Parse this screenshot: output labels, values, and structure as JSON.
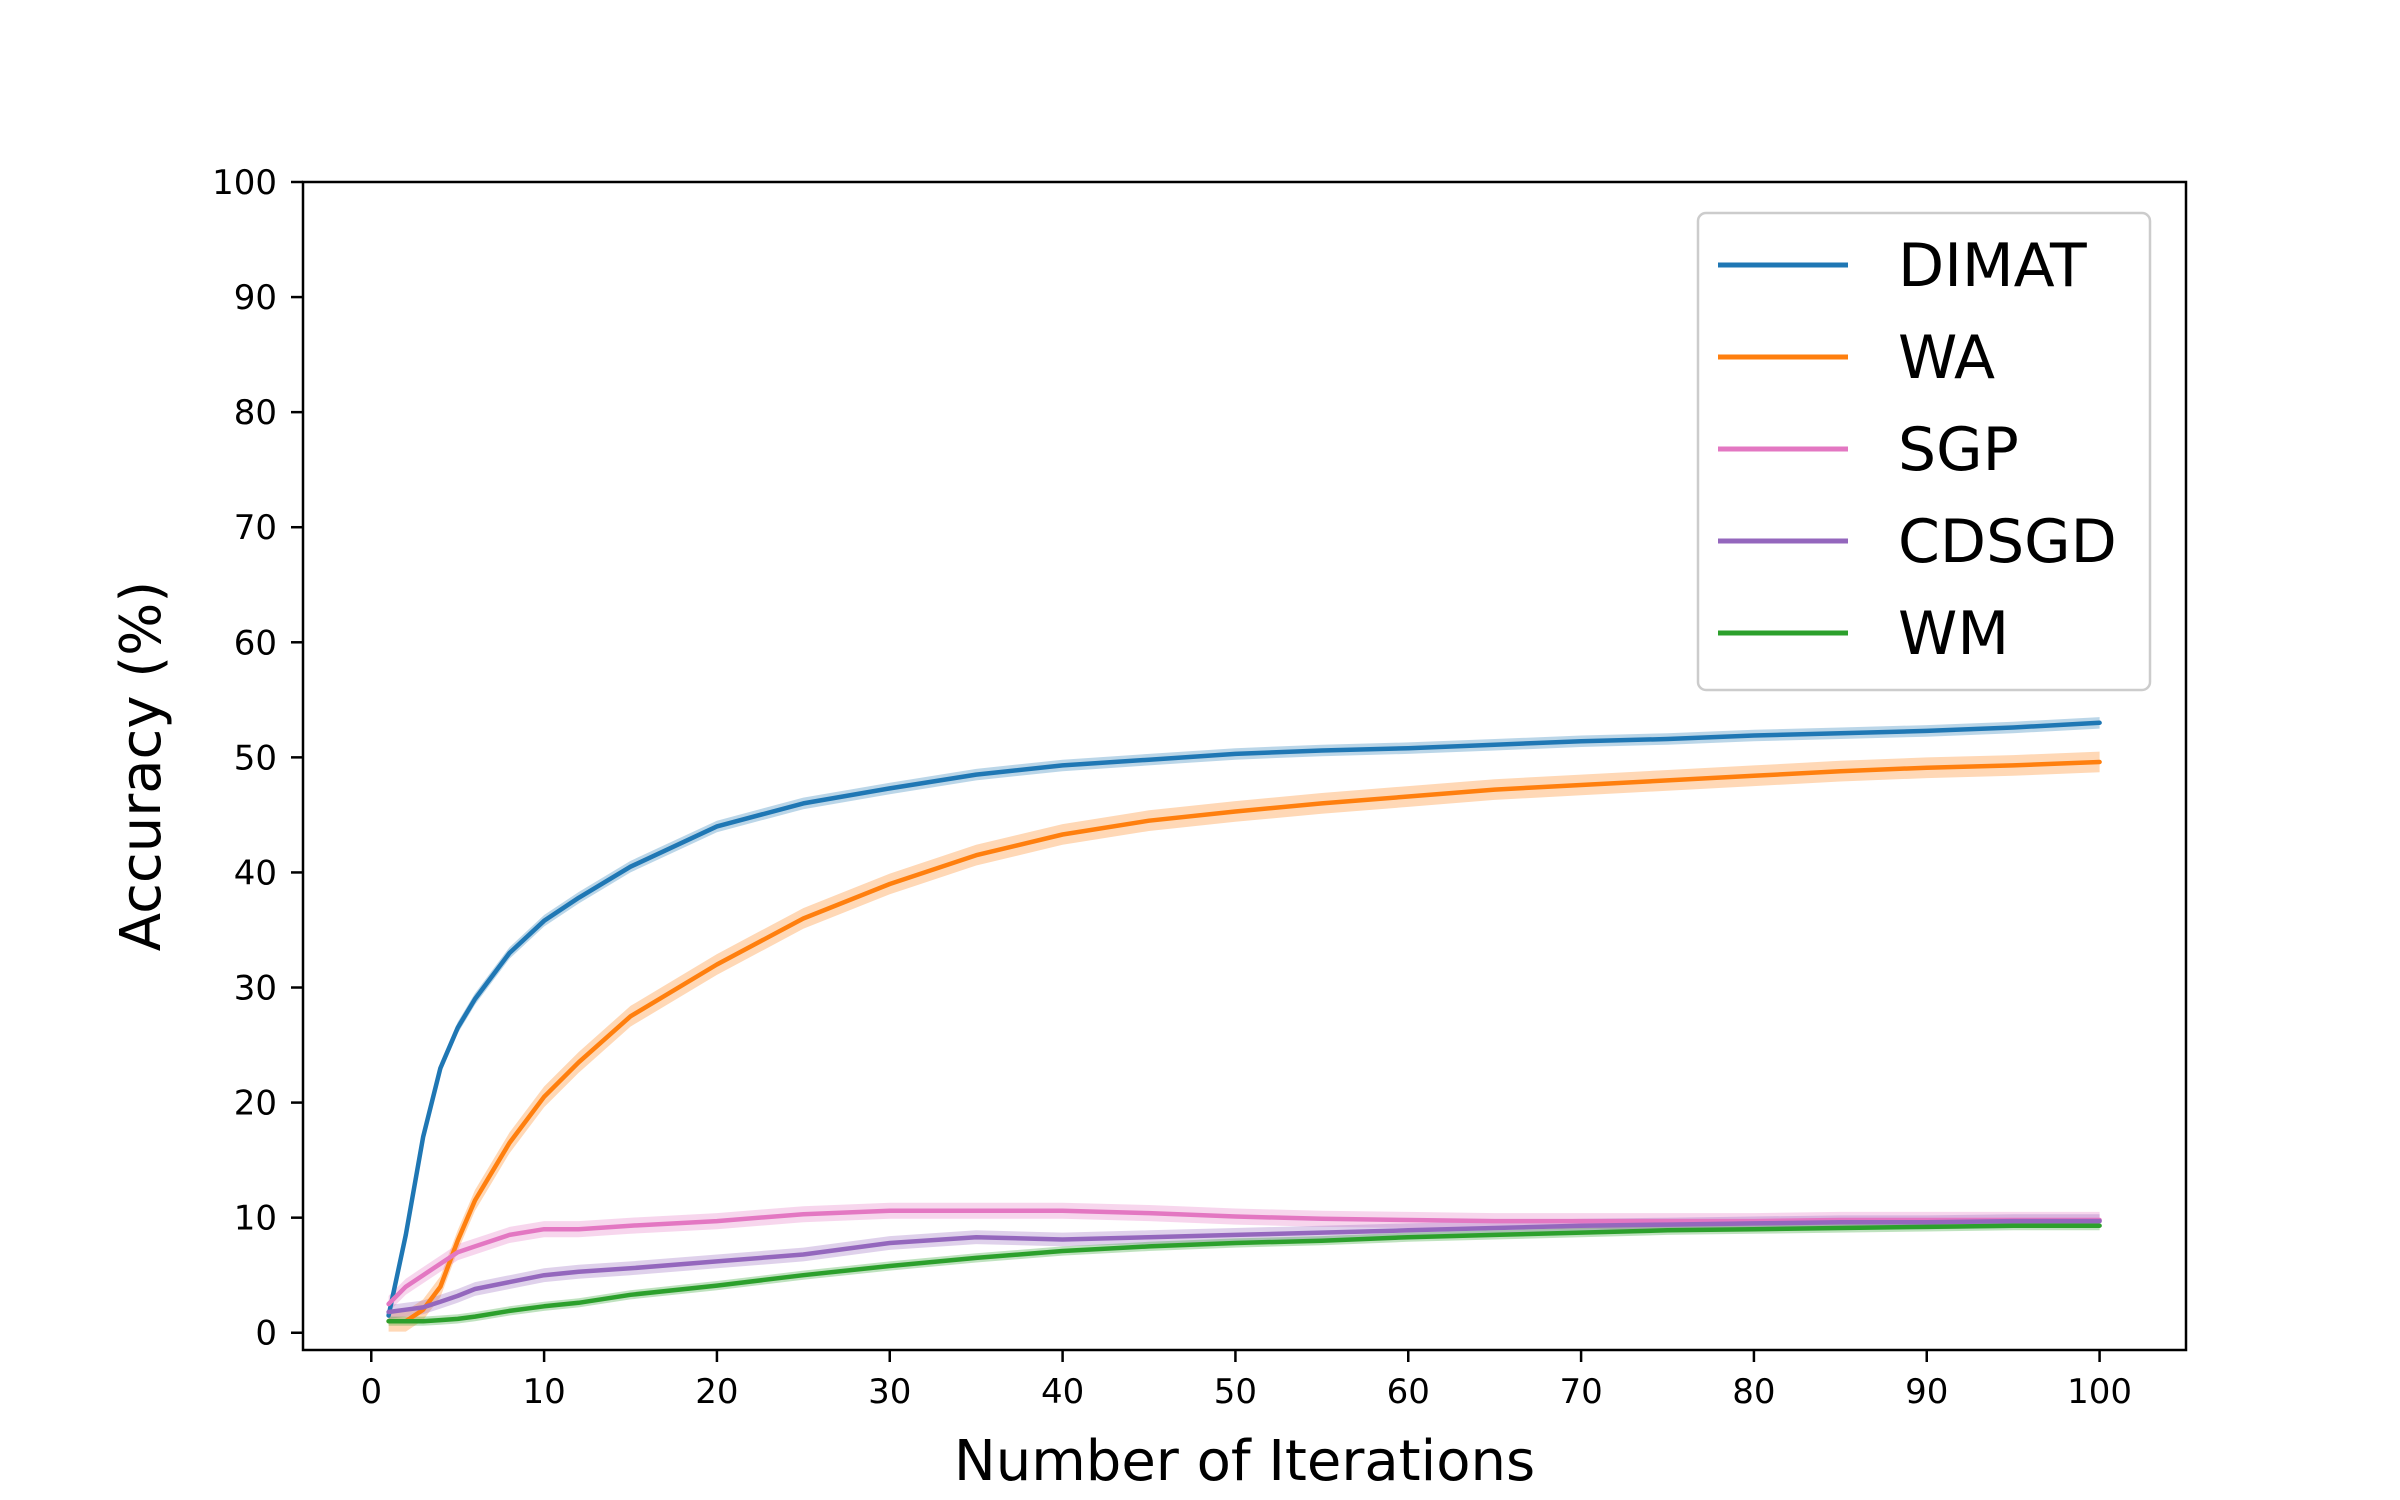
{
  "chart_data": {
    "type": "line",
    "title": "",
    "xlabel": "Number of Iterations",
    "ylabel": "Accuracy (%)",
    "xlim": [
      -3.95,
      105
    ],
    "ylim": [
      -1.5,
      100
    ],
    "xticks": [
      0,
      10,
      20,
      30,
      40,
      50,
      60,
      70,
      80,
      90,
      100
    ],
    "yticks": [
      0,
      10,
      20,
      30,
      40,
      50,
      60,
      70,
      80,
      90,
      100
    ],
    "grid": false,
    "legend_position": "top-right",
    "x": [
      1,
      2,
      3,
      4,
      5,
      6,
      8,
      10,
      12,
      15,
      20,
      25,
      30,
      35,
      40,
      45,
      50,
      55,
      60,
      65,
      70,
      75,
      80,
      85,
      90,
      95,
      100
    ],
    "series": [
      {
        "name": "DIMAT",
        "color": "#1f77b4",
        "values": [
          1.5,
          8.5,
          17,
          23,
          26.5,
          29,
          33,
          35.8,
          37.8,
          40.5,
          44,
          46,
          47.3,
          48.5,
          49.3,
          49.8,
          50.3,
          50.6,
          50.8,
          51.1,
          51.4,
          51.6,
          51.9,
          52.1,
          52.3,
          52.6,
          53
        ],
        "band": 0.5
      },
      {
        "name": "WA",
        "color": "#ff7f0e",
        "values": [
          1,
          1,
          2,
          4,
          8,
          11.5,
          16.5,
          20.5,
          23.5,
          27.5,
          32,
          36,
          39,
          41.5,
          43.3,
          44.5,
          45.3,
          46,
          46.6,
          47.2,
          47.6,
          48,
          48.4,
          48.8,
          49.1,
          49.3,
          49.6
        ],
        "band": 0.9
      },
      {
        "name": "SGP",
        "color": "#e377c2",
        "values": [
          2.5,
          4,
          5,
          6,
          7,
          7.5,
          8.5,
          9,
          9,
          9.3,
          9.7,
          10.3,
          10.6,
          10.6,
          10.6,
          10.4,
          10.1,
          9.9,
          9.8,
          9.7,
          9.7,
          9.7,
          9.7,
          9.8,
          9.8,
          9.8,
          9.8
        ],
        "band": 0.7
      },
      {
        "name": "CDSGD",
        "color": "#9467bd",
        "values": [
          1.8,
          2,
          2.2,
          2.7,
          3.2,
          3.8,
          4.4,
          5,
          5.3,
          5.6,
          6.2,
          6.8,
          7.8,
          8.3,
          8.1,
          8.3,
          8.5,
          8.7,
          8.9,
          9.1,
          9.3,
          9.4,
          9.5,
          9.6,
          9.6,
          9.7,
          9.7
        ],
        "band": 0.6
      },
      {
        "name": "WM",
        "color": "#2ca02c",
        "values": [
          1,
          1,
          1,
          1.1,
          1.2,
          1.4,
          1.9,
          2.3,
          2.6,
          3.3,
          4.1,
          5,
          5.8,
          6.5,
          7.1,
          7.5,
          7.8,
          8.0,
          8.3,
          8.5,
          8.7,
          8.9,
          9.0,
          9.1,
          9.2,
          9.3,
          9.3
        ],
        "band": 0.4
      }
    ]
  }
}
